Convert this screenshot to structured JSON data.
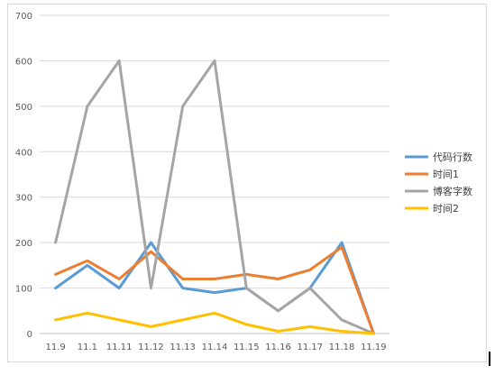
{
  "chart_data": {
    "type": "line",
    "categories": [
      "11.9",
      "11.1",
      "11.11",
      "11.12",
      "11.13",
      "11.14",
      "11.15",
      "11.16",
      "11.17",
      "11.18",
      "11.19"
    ],
    "ylim": [
      0,
      700
    ],
    "yticks": [
      "0",
      "100",
      "200",
      "300",
      "400",
      "500",
      "600",
      "700"
    ],
    "grid": true,
    "legend": "right",
    "series": [
      {
        "name": "代码行数",
        "color": "#5b9bd5",
        "values": [
          100,
          150,
          100,
          200,
          100,
          90,
          100,
          50,
          100,
          200,
          0
        ]
      },
      {
        "name": "时间1",
        "color": "#ed7d31",
        "values": [
          130,
          160,
          120,
          180,
          120,
          120,
          130,
          120,
          140,
          190,
          0
        ]
      },
      {
        "name": "博客字数",
        "color": "#a5a5a5",
        "values": [
          200,
          500,
          600,
          100,
          500,
          600,
          100,
          50,
          100,
          30,
          0
        ]
      },
      {
        "name": "时间2",
        "color": "#ffc000",
        "values": [
          30,
          45,
          30,
          15,
          30,
          45,
          20,
          5,
          15,
          5,
          0
        ]
      }
    ]
  }
}
